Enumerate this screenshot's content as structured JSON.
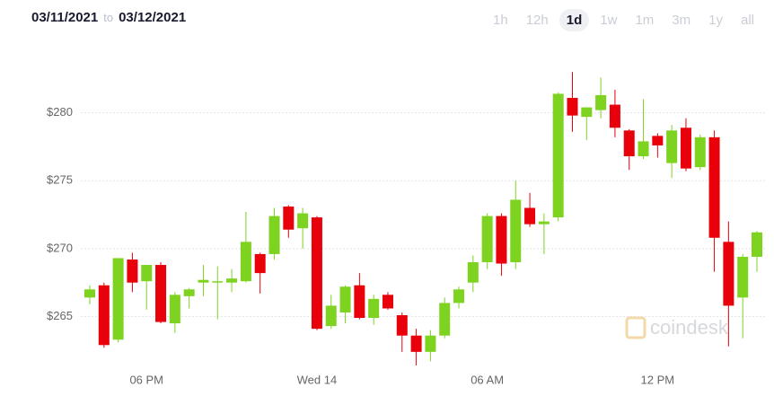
{
  "header": {
    "from": "03/11/2021",
    "to": "to",
    "until": "03/12/2021",
    "ranges": [
      "1h",
      "12h",
      "1d",
      "1w",
      "1m",
      "3m",
      "1y",
      "all"
    ],
    "selected": "1d"
  },
  "watermark": "coindesk",
  "chart_data": {
    "type": "candlestick",
    "categories": [
      null,
      null,
      null,
      null,
      "06 PM",
      null,
      null,
      null,
      null,
      null,
      null,
      null,
      null,
      null,
      null,
      null,
      "Wed 14",
      null,
      null,
      null,
      null,
      null,
      null,
      null,
      null,
      null,
      null,
      null,
      "06 AM",
      null,
      null,
      null,
      null,
      null,
      null,
      null,
      null,
      null,
      null,
      null,
      "12 PM",
      null,
      null,
      null,
      null,
      null,
      null,
      null
    ],
    "open": [
      266.4,
      267.3,
      263.3,
      269.2,
      267.6,
      268.8,
      264.5,
      266.5,
      267.5,
      267.6,
      267.5,
      267.6,
      269.6,
      269.6,
      273.1,
      271.5,
      272.3,
      264.3,
      265.3,
      267.3,
      264.9,
      266.6,
      265.1,
      263.6,
      262.4,
      263.6,
      266.0,
      267.5,
      269.0,
      272.4,
      269.0,
      273.0,
      271.8,
      272.3,
      281.1,
      279.7,
      280.2,
      280.6,
      278.7,
      276.8,
      278.3,
      276.3,
      278.9,
      276.0,
      278.2,
      270.5,
      266.4,
      269.4
    ],
    "close": [
      267.0,
      262.9,
      269.3,
      267.5,
      268.8,
      264.6,
      266.6,
      267.0,
      267.7,
      267.6,
      267.8,
      270.5,
      268.2,
      272.4,
      271.4,
      272.6,
      264.1,
      265.8,
      267.2,
      264.9,
      266.3,
      265.6,
      263.6,
      262.4,
      263.6,
      266.0,
      267.0,
      269.0,
      272.4,
      268.9,
      273.6,
      271.8,
      272.0,
      281.4,
      279.8,
      280.4,
      281.3,
      278.9,
      276.8,
      277.9,
      277.6,
      278.7,
      275.9,
      278.2,
      270.8,
      265.8,
      269.4,
      271.2
    ],
    "high": [
      267.3,
      267.5,
      269.3,
      269.7,
      268.8,
      269.0,
      266.8,
      267.1,
      268.8,
      268.7,
      268.5,
      272.7,
      269.7,
      273.0,
      273.2,
      273.0,
      272.4,
      266.6,
      267.3,
      268.2,
      266.6,
      266.8,
      265.3,
      264.1,
      264.0,
      266.4,
      267.2,
      269.5,
      272.6,
      272.6,
      275.0,
      274.1,
      272.6,
      281.5,
      283.0,
      280.4,
      282.6,
      281.7,
      278.8,
      281.0,
      278.5,
      279.1,
      279.6,
      278.4,
      278.7,
      272.0,
      269.6,
      271.3
    ],
    "low": [
      265.9,
      262.7,
      263.1,
      266.8,
      265.5,
      264.5,
      263.8,
      265.6,
      266.5,
      264.8,
      266.8,
      267.5,
      266.7,
      269.2,
      270.8,
      270.0,
      264.0,
      264.1,
      264.5,
      264.8,
      264.4,
      265.5,
      262.4,
      261.4,
      261.7,
      263.4,
      265.6,
      266.8,
      268.5,
      268.0,
      268.5,
      271.6,
      269.6,
      272.0,
      278.6,
      278.0,
      279.6,
      278.2,
      275.8,
      276.6,
      276.7,
      275.2,
      275.7,
      275.8,
      268.3,
      262.8,
      263.4,
      268.3
    ],
    "up_color": "#7ed321",
    "down_color": "#e8000b",
    "ylim": [
      261.2,
      285.0
    ],
    "yticks": [
      {
        "value": 265,
        "label": "$265"
      },
      {
        "value": 270,
        "label": "$270"
      },
      {
        "value": 275,
        "label": "$275"
      },
      {
        "value": 280,
        "label": "$280"
      }
    ],
    "grid": true
  }
}
